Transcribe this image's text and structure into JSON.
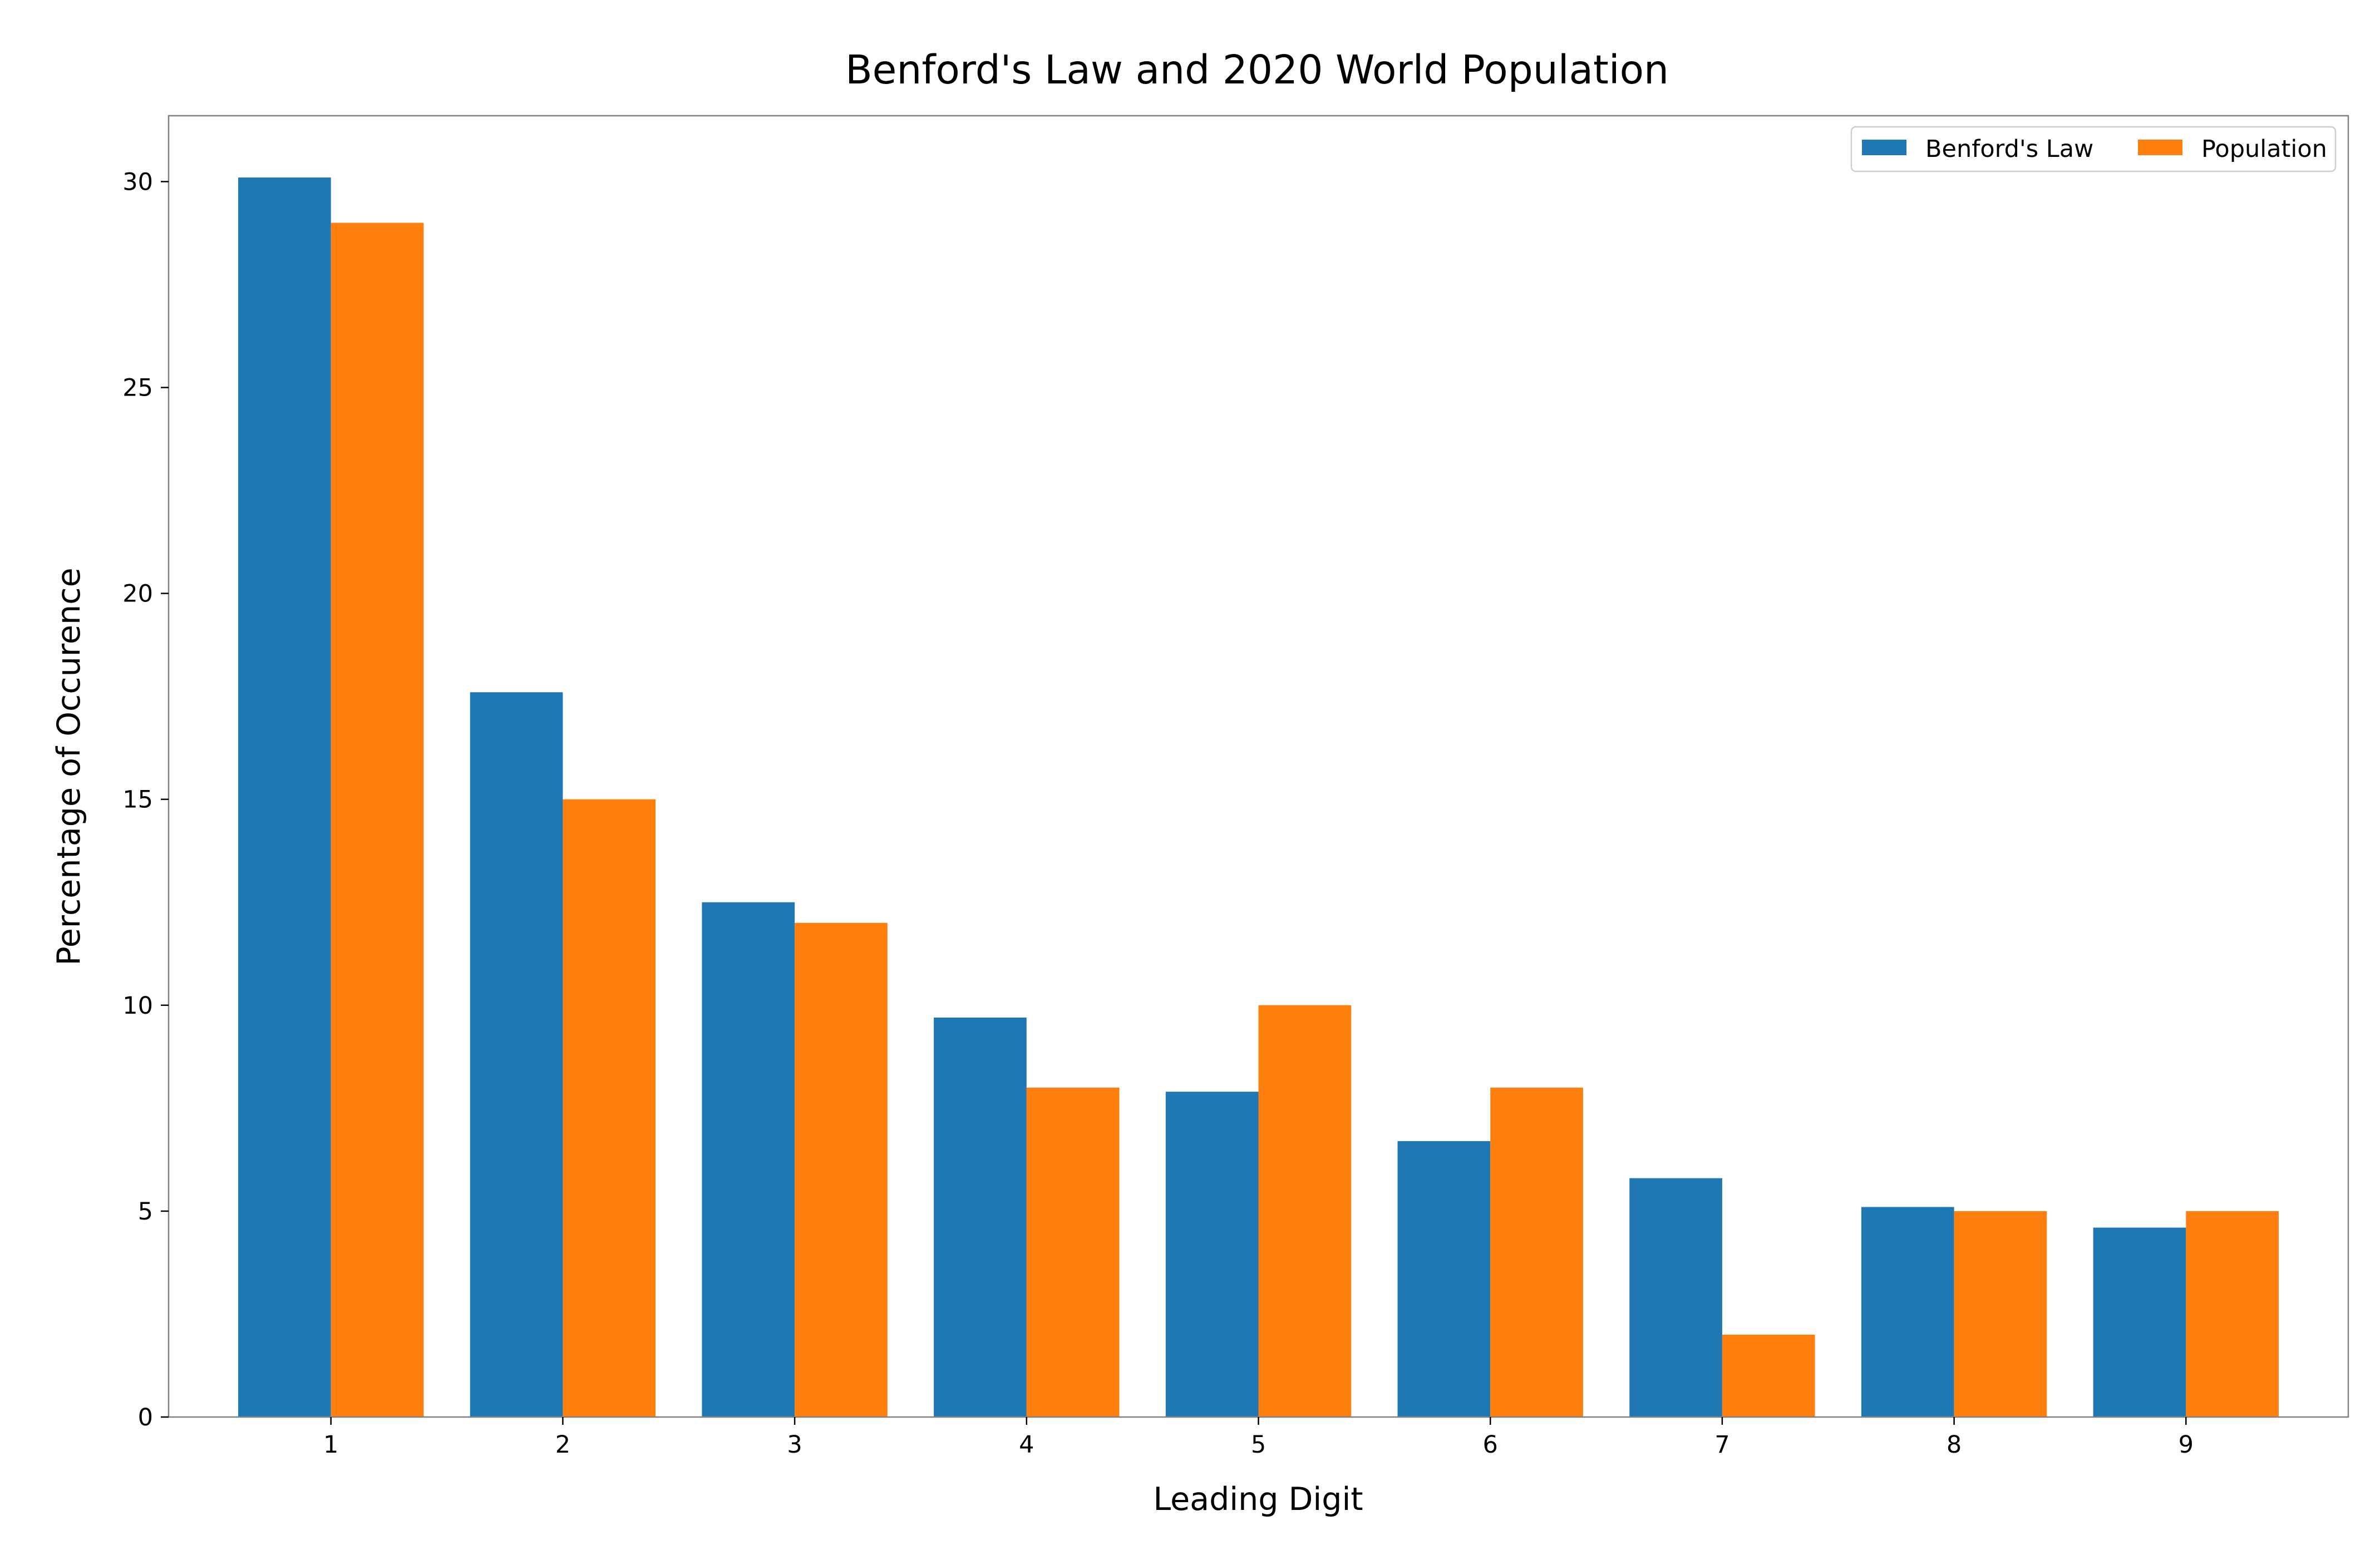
{
  "chart_data": {
    "type": "bar",
    "title": "Benford's Law and 2020 World Population",
    "xlabel": "Leading Digit",
    "ylabel": "Percentage of Occurence",
    "categories": [
      "1",
      "2",
      "3",
      "4",
      "5",
      "6",
      "7",
      "8",
      "9"
    ],
    "series": [
      {
        "name": "Benford's Law",
        "color": "#1f77b4",
        "values": [
          30.1,
          17.6,
          12.5,
          9.7,
          7.9,
          6.7,
          5.8,
          5.1,
          4.6
        ]
      },
      {
        "name": "Population",
        "color": "#ff7f0e",
        "values": [
          29,
          15,
          12,
          8,
          10,
          8,
          2,
          5,
          5
        ]
      }
    ],
    "ylim": [
      0,
      31.6
    ],
    "yticks": [
      0,
      5,
      10,
      15,
      20,
      25,
      30
    ],
    "grid": false,
    "legend": {
      "placement": "upper-right",
      "columns": 2
    }
  }
}
